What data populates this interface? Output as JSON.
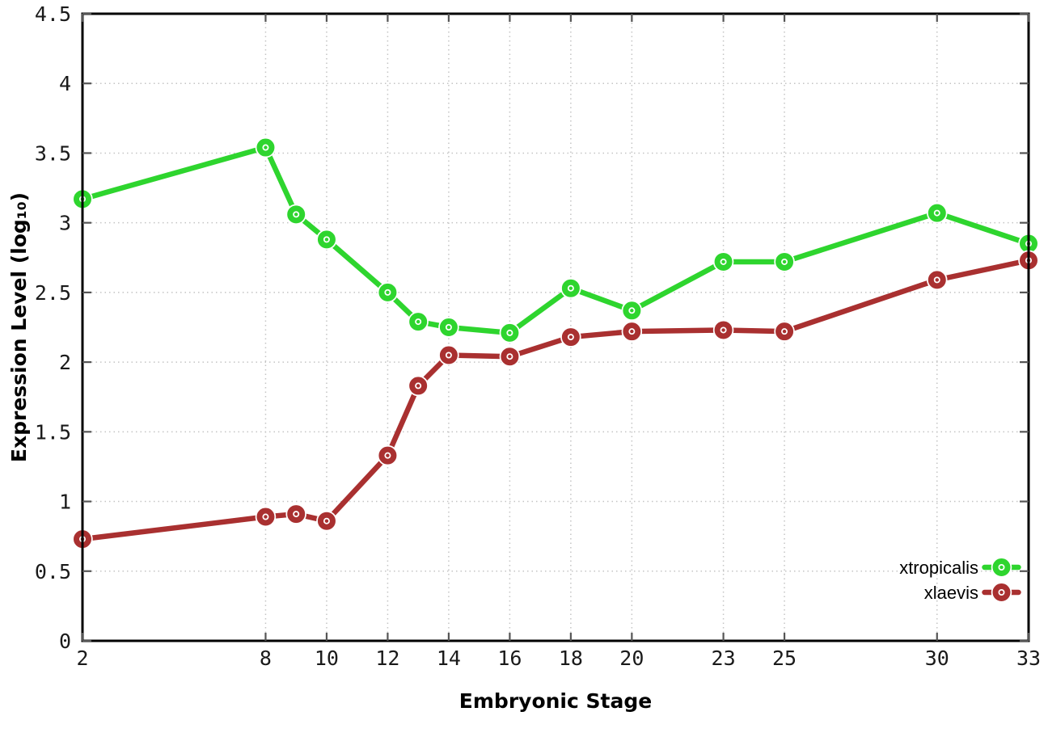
{
  "chart_data": {
    "type": "line",
    "title": "",
    "xlabel": "Embryonic Stage",
    "ylabel": "Expression Level (log₁₀)",
    "x": [
      2,
      8,
      9,
      10,
      12,
      13,
      14,
      16,
      18,
      20,
      23,
      25,
      30,
      33
    ],
    "series": [
      {
        "name": "xtropicalis",
        "color": "#2ed52e",
        "values": [
          3.17,
          3.54,
          3.06,
          2.88,
          2.5,
          2.29,
          2.25,
          2.21,
          2.53,
          2.37,
          2.72,
          2.72,
          3.07,
          2.85
        ]
      },
      {
        "name": "xlaevis",
        "color": "#a93030",
        "values": [
          0.73,
          0.89,
          0.91,
          0.86,
          1.33,
          1.83,
          2.05,
          2.04,
          2.18,
          2.22,
          2.23,
          2.22,
          2.59,
          2.73
        ]
      }
    ],
    "xlim": [
      2,
      33
    ],
    "ylim": [
      0,
      4.5
    ],
    "xticks": {
      "values": [
        2,
        8,
        10,
        12,
        14,
        16,
        18,
        20,
        23,
        25,
        30,
        33
      ],
      "labels": [
        "2",
        "8",
        "10",
        "12",
        "14",
        "16",
        "18",
        "20",
        "23",
        "25",
        "30",
        "33"
      ]
    },
    "yticks": {
      "values": [
        0,
        0.5,
        1,
        1.5,
        2,
        2.5,
        3,
        3.5,
        4,
        4.5
      ],
      "labels": [
        "0",
        "0.5",
        "1",
        "1.5",
        "2",
        "2.5",
        "3",
        "3.5",
        "4",
        "4.5"
      ]
    },
    "grid": true,
    "legend_position": "bottom-right",
    "marker": "open-circle"
  },
  "styles": {
    "background": "#ffffff",
    "axis_color": "#000000",
    "tick_color": "#555555",
    "grid_color": "#c4c4c4",
    "text_color": "#1a1a1a"
  }
}
